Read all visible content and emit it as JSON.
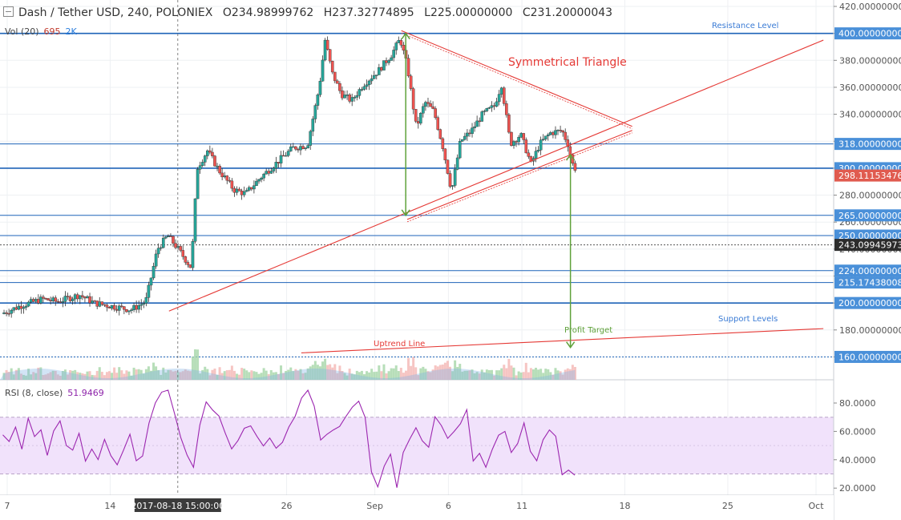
{
  "header": {
    "symbol": "Dash / Tether USD, 240, POLONIEX",
    "open": "O234.98999762",
    "high": "H237.32774895",
    "low": "L225.00000000",
    "close": "C231.20000043"
  },
  "volume_legend": {
    "label": "Vol (20)",
    "value1": "695",
    "value2": "2K"
  },
  "rsi_legend": {
    "label": "RSI (8, close)",
    "value": "51.9469"
  },
  "annotations": {
    "resistance": "Resistance Level",
    "triangle": "Symmetrical Triangle",
    "support": "Support Levels",
    "profit": "Profit Target",
    "uptrend": "Uptrend Line"
  },
  "colors": {
    "up": "#26a69a",
    "down": "#ef5350",
    "level_line": "#1e63b8",
    "trend": "#e53935",
    "arrow": "#5fa13a",
    "rsi": "#9c27b0",
    "rsi_band": "#f1e2fb",
    "price_tag": "#e05b4f",
    "dark_tag": "#2c2c2c",
    "blue_tag": "#4a90d9"
  },
  "chart_data": {
    "type": "candlestick",
    "symbol": "DASH/USDT",
    "timeframe": "240",
    "exchange": "POLONIEX",
    "ylim": [
      160,
      420
    ],
    "y_ticks": [
      420,
      400,
      380,
      360,
      340,
      320,
      300,
      280,
      260,
      240,
      220,
      200,
      180,
      160
    ],
    "y_tick_labels": [
      "420.00000000",
      "400.00000000",
      "380.00000000",
      "360.00000000",
      "340.00000000",
      "320.00000000",
      "300.00000000",
      "280.00000000",
      "260.00000000",
      "240.00000000",
      "220.00000000",
      "200.00000000",
      "180.00000000",
      "160.00000000"
    ],
    "price_tags": [
      {
        "value": 400,
        "label": "400.00000000",
        "style": "blue"
      },
      {
        "value": 318,
        "label": "318.00000000",
        "style": "blue"
      },
      {
        "value": 300,
        "label": "300.00000000",
        "style": "blue"
      },
      {
        "value": 298.11153476,
        "label": "298.11153476",
        "style": "last"
      },
      {
        "value": 265,
        "label": "265.00000000",
        "style": "blue"
      },
      {
        "value": 250,
        "label": "250.00000000",
        "style": "blue"
      },
      {
        "value": 243.09945973,
        "label": "243.09945973",
        "style": "dark"
      },
      {
        "value": 224,
        "label": "224.00000000",
        "style": "blue"
      },
      {
        "value": 215.17438008,
        "label": "215.17438008",
        "style": "blue"
      },
      {
        "value": 200,
        "label": "200.00000000",
        "style": "blue"
      },
      {
        "value": 160,
        "label": "160.00000000",
        "style": "blue"
      }
    ],
    "horizontal_levels": [
      400,
      318,
      300,
      265,
      250,
      224,
      215.17438008,
      200
    ],
    "dashed_levels": [
      243.09945973,
      160
    ],
    "x_ticks": [
      {
        "label": "7",
        "day": 7
      },
      {
        "label": "14",
        "day": 14
      },
      {
        "label": "26",
        "day": 26
      },
      {
        "label": "Sep",
        "day": 32
      },
      {
        "label": "6",
        "day": 37
      },
      {
        "label": "11",
        "day": 42
      },
      {
        "label": "18",
        "day": 49
      },
      {
        "label": "25",
        "day": 56
      },
      {
        "label": "Oct",
        "day": 62
      }
    ],
    "cursor_label": "2017-08-18 15:00:00",
    "cursor_day": 18.6,
    "price_path": [
      {
        "day": 6.7,
        "price": 192
      },
      {
        "day": 8,
        "price": 198
      },
      {
        "day": 9.5,
        "price": 203
      },
      {
        "day": 10.5,
        "price": 201
      },
      {
        "day": 12,
        "price": 206
      },
      {
        "day": 13,
        "price": 200
      },
      {
        "day": 14.5,
        "price": 197
      },
      {
        "day": 15.5,
        "price": 195
      },
      {
        "day": 16.5,
        "price": 201
      },
      {
        "day": 17.3,
        "price": 240
      },
      {
        "day": 18,
        "price": 250
      },
      {
        "day": 18.7,
        "price": 240
      },
      {
        "day": 19.6,
        "price": 226
      },
      {
        "day": 20,
        "price": 300
      },
      {
        "day": 20.7,
        "price": 313
      },
      {
        "day": 21.5,
        "price": 298
      },
      {
        "day": 22.5,
        "price": 284
      },
      {
        "day": 23.3,
        "price": 281
      },
      {
        "day": 24.3,
        "price": 293
      },
      {
        "day": 25.3,
        "price": 303
      },
      {
        "day": 26.5,
        "price": 315
      },
      {
        "day": 27.5,
        "price": 317
      },
      {
        "day": 28.3,
        "price": 360
      },
      {
        "day": 28.7,
        "price": 395
      },
      {
        "day": 29.2,
        "price": 370
      },
      {
        "day": 29.8,
        "price": 355
      },
      {
        "day": 30.5,
        "price": 350
      },
      {
        "day": 31.3,
        "price": 362
      },
      {
        "day": 32.3,
        "price": 372
      },
      {
        "day": 33.2,
        "price": 384
      },
      {
        "day": 33.8,
        "price": 396
      },
      {
        "day": 34.3,
        "price": 375
      },
      {
        "day": 34.9,
        "price": 330
      },
      {
        "day": 35.5,
        "price": 349
      },
      {
        "day": 36.1,
        "price": 342
      },
      {
        "day": 36.7,
        "price": 316
      },
      {
        "day": 37.3,
        "price": 283
      },
      {
        "day": 37.9,
        "price": 320
      },
      {
        "day": 38.6,
        "price": 327
      },
      {
        "day": 39.4,
        "price": 340
      },
      {
        "day": 40.2,
        "price": 346
      },
      {
        "day": 40.7,
        "price": 362
      },
      {
        "day": 41.3,
        "price": 318
      },
      {
        "day": 42,
        "price": 325
      },
      {
        "day": 42.7,
        "price": 303
      },
      {
        "day": 43.3,
        "price": 318
      },
      {
        "day": 44,
        "price": 326
      },
      {
        "day": 44.8,
        "price": 328
      },
      {
        "day": 45.2,
        "price": 318
      },
      {
        "day": 45.6,
        "price": 300
      }
    ],
    "trendlines": [
      {
        "name": "uptrend",
        "from": {
          "day": 18,
          "price": 194
        },
        "to": {
          "day": 62.5,
          "price": 395
        }
      },
      {
        "name": "triangle-upper",
        "from": {
          "day": 33.8,
          "price": 402
        },
        "to": {
          "day": 49.5,
          "price": 331
        }
      },
      {
        "name": "triangle-lower",
        "from": {
          "day": 34.2,
          "price": 262
        },
        "to": {
          "day": 49.5,
          "price": 328
        }
      },
      {
        "name": "support",
        "from": {
          "day": 27,
          "price": 163
        },
        "to": {
          "day": 62.5,
          "price": 181
        }
      }
    ],
    "arrows": [
      {
        "name": "triangle-height",
        "day": 34.1,
        "from": 400,
        "to": 265
      },
      {
        "name": "profit-target",
        "day": 45.3,
        "from": 310,
        "to": 167
      }
    ],
    "volume_pane": {
      "label": "Vol (20)",
      "value_red": 695,
      "value_blue": "2K"
    },
    "rsi_pane": {
      "label": "RSI (8, close)",
      "last": 51.9469,
      "ylim": [
        15,
        95
      ],
      "ticks": [
        80,
        60,
        40,
        20
      ],
      "tick_labels": [
        "80.0000",
        "60.0000",
        "40.0000",
        "20.0000"
      ],
      "band": [
        30,
        70
      ],
      "values": [
        58,
        52,
        64,
        48,
        70,
        55,
        62,
        44,
        59,
        67,
        51,
        46,
        60,
        38,
        49,
        41,
        54,
        43,
        36,
        48,
        58,
        38,
        44,
        65,
        80,
        86,
        88,
        74,
        56,
        44,
        35,
        63,
        80,
        74,
        72,
        58,
        46,
        53,
        61,
        64,
        58,
        49,
        54,
        47,
        51,
        62,
        70,
        82,
        88,
        79,
        54,
        58,
        60,
        65,
        71,
        78,
        82,
        71,
        33,
        20,
        36,
        43,
        22,
        45,
        56,
        62,
        54,
        49,
        71,
        65,
        55,
        60,
        64,
        74,
        38,
        43,
        36,
        46,
        56,
        59,
        46,
        52,
        66,
        46,
        38,
        53,
        62,
        58,
        30,
        31,
        29
      ]
    }
  }
}
